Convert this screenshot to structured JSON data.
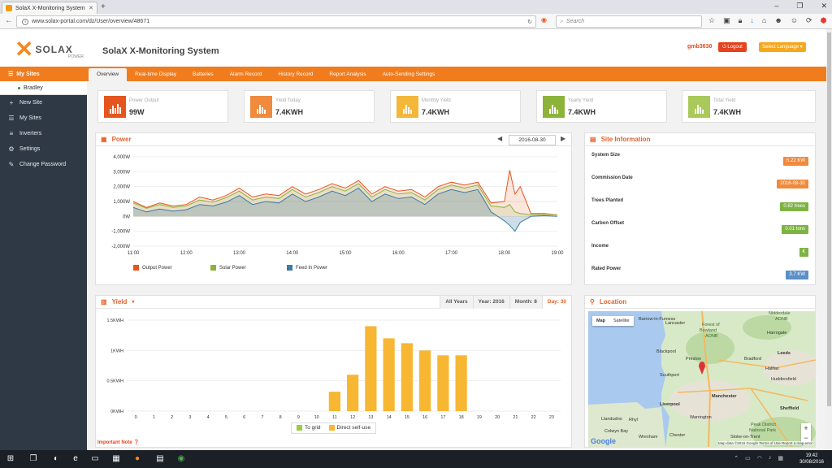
{
  "browser": {
    "tab_title": "SolaX X-Monitoring System",
    "url": "www.solax-portal.com/dz/User/overview/48671",
    "search_placeholder": "Search"
  },
  "header": {
    "logo_text": "SOLAX",
    "logo_sub": "POWER",
    "system_name": "SolaX X-Monitoring System",
    "username": "gmb3630",
    "logout_label": "Logout",
    "language_label": "Select Language"
  },
  "sidebar": {
    "active": "My Sites",
    "site": "Bradley",
    "items": [
      {
        "label": "New Site",
        "icon": "plus-icon"
      },
      {
        "label": "My Sites",
        "icon": "list-icon"
      },
      {
        "label": "Inverters",
        "icon": "bars-icon"
      },
      {
        "label": "Settings",
        "icon": "gear-icon"
      },
      {
        "label": "Change Password",
        "icon": "edit-icon"
      }
    ]
  },
  "tabs": [
    "Overview",
    "Real-time Display",
    "Batteries",
    "Alarm Record",
    "History Record",
    "Report Analysis",
    "Auto-Sending Settings"
  ],
  "kpis": [
    {
      "label": "Power Output",
      "value": "99W",
      "color": "#e5561f"
    },
    {
      "label": "Yield Today",
      "value": "7.4KWH",
      "color": "#f08a3c"
    },
    {
      "label": "Monthly Yield",
      "value": "7.4KWH",
      "color": "#f3b73a"
    },
    {
      "label": "Yearly Yield",
      "value": "7.4KWH",
      "color": "#8db33a"
    },
    {
      "label": "Total Yield",
      "value": "7.4KWH",
      "color": "#a9c95a"
    }
  ],
  "power_panel": {
    "title": "Power",
    "date": "2016-08-30",
    "legend": [
      {
        "name": "Output Power",
        "color": "#e5561f"
      },
      {
        "name": "Solar Power",
        "color": "#8db33a"
      },
      {
        "name": "Feed In Power",
        "color": "#3a7ca5"
      }
    ]
  },
  "site_info": {
    "title": "Site Information",
    "rows": [
      {
        "label": "System Size",
        "value": "5.22 KW",
        "color": "#f08a3c"
      },
      {
        "label": "Commission Date",
        "value": "2016-08-30",
        "color": "#f08a3c"
      },
      {
        "label": "Trees Planted",
        "value": "0.82 trees",
        "color": "#7cb342"
      },
      {
        "label": "Carbon Offset",
        "value": "0.01 tons",
        "color": "#7cb342"
      },
      {
        "label": "Income",
        "value": "€",
        "color": "#7cb342"
      },
      {
        "label": "Rated Power",
        "value": "3.7 KW",
        "color": "#5b8fc7"
      }
    ]
  },
  "yield_panel": {
    "title": "Yield",
    "tabs": [
      "All Years",
      "Year: 2016",
      "Month: 8",
      "Day: 30"
    ],
    "legend": [
      {
        "name": "To grid",
        "color": "#9ccc45"
      },
      {
        "name": "Direct self-use",
        "color": "#f7b733"
      }
    ],
    "important_note": "Important Note"
  },
  "location": {
    "title": "Location",
    "map_tab": "Map",
    "satellite_tab": "Satellite",
    "labels": [
      "Barrow-in-Furness",
      "Lancaster",
      "Forest of",
      "Bowland",
      "AONB",
      "Nidderdale",
      "AONB",
      "Harrogate",
      "Blackpool",
      "Preston",
      "Bradford",
      "Leeds",
      "Southport",
      "Halifax",
      "Huddersfield",
      "Manchester",
      "Liverpool",
      "Sheffield",
      "Warrington",
      "Llandudno",
      "Rhyl",
      "Colwyn Bay",
      "Chester",
      "Peak District",
      "National Park",
      "Stoke-on-Trent",
      "Wrexham"
    ],
    "footer": "Map data ©2016 Google   Terms of Use   Report a map error",
    "google": "Google"
  },
  "taskbar": {
    "time": "19:42",
    "date": "30/08/2016"
  },
  "chart_data": [
    {
      "type": "area",
      "title": "Power",
      "x_ticks": [
        "11:00",
        "12:00",
        "13:00",
        "14:00",
        "15:00",
        "16:00",
        "17:00",
        "18:00",
        "19:00"
      ],
      "y_ticks": [
        "4,000W",
        "3,000W",
        "2,000W",
        "1,000W",
        "0W",
        "-1,000W",
        "-2,000W"
      ],
      "ylim": [
        -2000,
        4000
      ],
      "x_range_hours": [
        11.0,
        19.0
      ],
      "series": [
        {
          "name": "Output Power",
          "x": [
            11.0,
            11.25,
            11.5,
            11.75,
            12.0,
            12.25,
            12.5,
            12.75,
            13.0,
            13.25,
            13.5,
            13.75,
            14.0,
            14.25,
            14.5,
            14.75,
            15.0,
            15.25,
            15.5,
            15.75,
            16.0,
            16.25,
            16.5,
            16.75,
            17.0,
            17.25,
            17.5,
            17.75,
            18.0,
            18.1,
            18.2,
            18.3,
            18.5,
            18.75,
            19.0
          ],
          "values": [
            1000,
            600,
            900,
            700,
            800,
            1300,
            1100,
            1400,
            1900,
            1300,
            1500,
            1400,
            2000,
            1500,
            1800,
            2200,
            1900,
            2400,
            1500,
            2000,
            1700,
            1800,
            1300,
            2000,
            2300,
            2100,
            2300,
            900,
            1000,
            3100,
            1500,
            2000,
            200,
            200,
            100
          ]
        },
        {
          "name": "Solar Power",
          "x": [
            11.0,
            11.25,
            11.5,
            11.75,
            12.0,
            12.25,
            12.5,
            12.75,
            13.0,
            13.25,
            13.5,
            13.75,
            14.0,
            14.25,
            14.5,
            14.75,
            15.0,
            15.25,
            15.5,
            15.75,
            16.0,
            16.25,
            16.5,
            16.75,
            17.0,
            17.25,
            17.5,
            17.75,
            18.0,
            18.1,
            18.2,
            18.3,
            18.5,
            18.75,
            19.0
          ],
          "values": [
            900,
            550,
            800,
            600,
            700,
            1100,
            950,
            1250,
            1700,
            1100,
            1300,
            1200,
            1800,
            1300,
            1600,
            2000,
            1700,
            2200,
            1300,
            1800,
            1500,
            1600,
            1100,
            1800,
            2100,
            1900,
            2100,
            700,
            600,
            800,
            300,
            200,
            100,
            150,
            100
          ]
        },
        {
          "name": "Feed In Power",
          "x": [
            11.0,
            11.25,
            11.5,
            11.75,
            12.0,
            12.25,
            12.5,
            12.75,
            13.0,
            13.25,
            13.5,
            13.75,
            14.0,
            14.25,
            14.5,
            14.75,
            15.0,
            15.25,
            15.5,
            15.75,
            16.0,
            16.25,
            16.5,
            16.75,
            17.0,
            17.25,
            17.5,
            17.75,
            18.0,
            18.1,
            18.2,
            18.3,
            18.5,
            18.75,
            19.0
          ],
          "values": [
            600,
            300,
            500,
            350,
            450,
            800,
            700,
            950,
            1400,
            800,
            1000,
            900,
            1500,
            1000,
            1300,
            1700,
            1400,
            1900,
            1000,
            1500,
            1200,
            1300,
            800,
            1500,
            1800,
            1600,
            1800,
            300,
            -300,
            -600,
            -1000,
            -400,
            0,
            50,
            0
          ]
        }
      ]
    },
    {
      "type": "bar",
      "title": "Yield",
      "categories": [
        "0",
        "1",
        "2",
        "3",
        "4",
        "5",
        "6",
        "7",
        "8",
        "9",
        "10",
        "11",
        "12",
        "13",
        "14",
        "15",
        "16",
        "17",
        "18",
        "19",
        "20",
        "21",
        "22",
        "23"
      ],
      "y_ticks": [
        "1.5KWH",
        "1KWH",
        "0.5KWH",
        "0KWH"
      ],
      "ylim": [
        0,
        1.5
      ],
      "series": [
        {
          "name": "To grid",
          "values": [
            0,
            0,
            0,
            0,
            0,
            0,
            0,
            0,
            0,
            0,
            0,
            0,
            0,
            0,
            0,
            0,
            0,
            0,
            0,
            0,
            0,
            0,
            0,
            0
          ]
        },
        {
          "name": "Direct self-use",
          "values": [
            0,
            0,
            0,
            0,
            0,
            0,
            0,
            0,
            0,
            0,
            0,
            0.32,
            0.6,
            1.4,
            1.2,
            1.12,
            1.0,
            0.92,
            0.92,
            0,
            0,
            0,
            0,
            0
          ]
        }
      ]
    }
  ]
}
